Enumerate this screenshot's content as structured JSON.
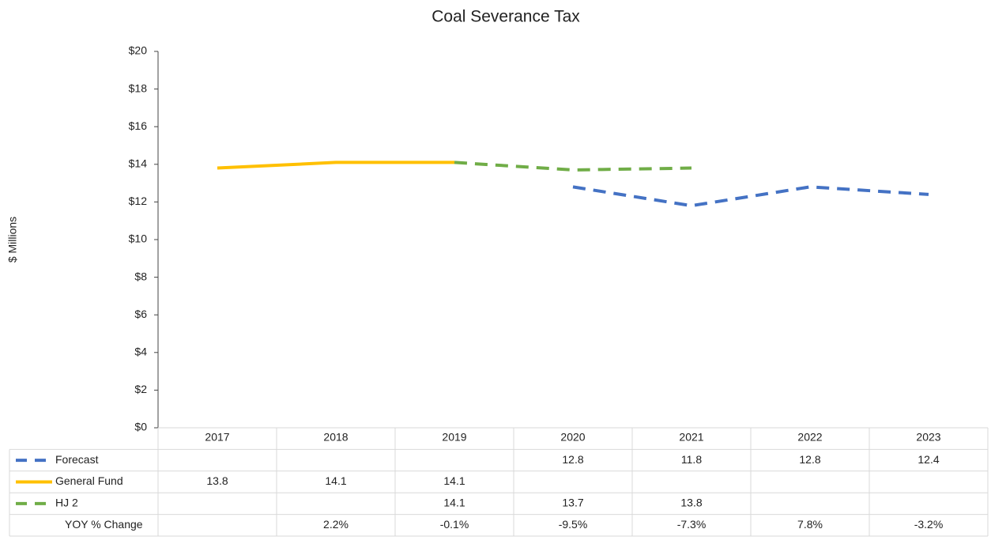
{
  "chart_data": {
    "type": "line",
    "title": "Coal Severance Tax",
    "y_label": "$ Millions",
    "categories": [
      "2017",
      "2018",
      "2019",
      "2020",
      "2021",
      "2022",
      "2023"
    ],
    "series": [
      {
        "name": "Forecast",
        "color": "#4472c4",
        "dashed": true,
        "values": [
          null,
          null,
          null,
          12.8,
          11.8,
          12.8,
          12.4
        ]
      },
      {
        "name": "General Fund",
        "color": "#ffc000",
        "dashed": false,
        "values": [
          13.8,
          14.1,
          14.1,
          null,
          null,
          null,
          null
        ]
      },
      {
        "name": "HJ 2",
        "color": "#70ad47",
        "dashed": true,
        "values": [
          null,
          null,
          14.1,
          13.7,
          13.8,
          null,
          null
        ]
      }
    ],
    "yoy": {
      "name": "YOY % Change",
      "values": [
        null,
        2.2,
        -0.1,
        -9.5,
        -7.3,
        7.8,
        -3.2
      ],
      "value_labels": [
        null,
        "2.2%",
        "-0.1%",
        "-9.5%",
        "-7.3%",
        "7.8%",
        "-3.2%"
      ]
    },
    "ylim": [
      0,
      20
    ],
    "yticks": [
      {
        "value": 0,
        "label": "$0"
      },
      {
        "value": 2,
        "label": "$2"
      },
      {
        "value": 4,
        "label": "$4"
      },
      {
        "value": 6,
        "label": "$6"
      },
      {
        "value": 8,
        "label": "$8"
      },
      {
        "value": 10,
        "label": "$10"
      },
      {
        "value": 12,
        "label": "$12"
      },
      {
        "value": 14,
        "label": "$14"
      },
      {
        "value": 16,
        "label": "$16"
      },
      {
        "value": 18,
        "label": "$18"
      },
      {
        "value": 20,
        "label": "$20"
      }
    ],
    "grid": false
  }
}
